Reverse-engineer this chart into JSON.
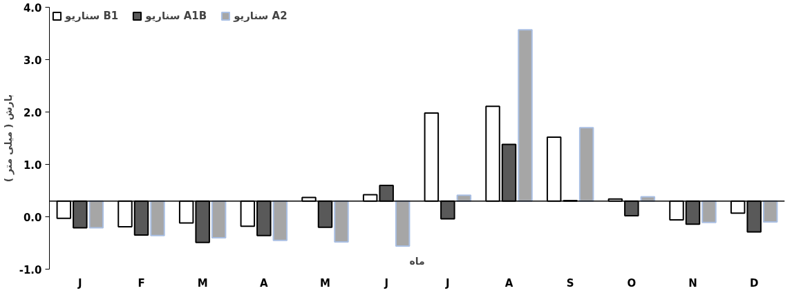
{
  "chart_data": {
    "type": "bar",
    "xlabel": "ماه",
    "ylabel": "بارش ( میلی متر )",
    "categories": [
      "J",
      "F",
      "M",
      "A",
      "M",
      "J",
      "J",
      "A",
      "S",
      "O",
      "N",
      "D"
    ],
    "series": [
      {
        "name": "سناریو B1",
        "color": "#ffffff",
        "values": [
          -0.33,
          -0.49,
          -0.42,
          -0.48,
          0.07,
          0.12,
          1.68,
          1.81,
          1.22,
          0.04,
          -0.36,
          -0.23
        ],
        "base": [
          0.3,
          0.3,
          0.3,
          0.3,
          0.3,
          0.3,
          0.3,
          0.3,
          0.3,
          0.3,
          0.3,
          0.3
        ]
      },
      {
        "name": "سناریو A1B",
        "color": "#595959",
        "values": [
          -0.51,
          -0.65,
          -0.79,
          -0.66,
          -0.5,
          0.3,
          -0.34,
          1.08,
          0.01,
          -0.28,
          -0.44,
          -0.59
        ],
        "base": [
          0.3,
          0.3,
          0.3,
          0.3,
          0.3,
          0.3,
          0.3,
          0.3,
          0.3,
          0.3,
          0.3,
          0.3
        ]
      },
      {
        "name": "سناریو A2",
        "color": "#a6a6a6",
        "values": [
          -0.51,
          -0.66,
          -0.7,
          -0.75,
          -0.78,
          -0.86,
          0.11,
          3.27,
          1.4,
          0.08,
          -0.41,
          -0.4
        ],
        "base": [
          0.3,
          0.3,
          0.3,
          0.3,
          0.3,
          0.3,
          0.3,
          0.3,
          0.3,
          0.3,
          0.3,
          0.3
        ]
      }
    ],
    "ylim": [
      -1,
      4
    ],
    "yticks": [
      {
        "value": -1,
        "label": "-1.0"
      },
      {
        "value": 0,
        "label": "0.0"
      },
      {
        "value": 1,
        "label": "1.0"
      },
      {
        "value": 2,
        "label": "2.0"
      },
      {
        "value": 3,
        "label": "3.0"
      },
      {
        "value": 4,
        "label": "4.0"
      }
    ],
    "ref_lines": [
      {
        "axis": "y",
        "value": 0.3
      }
    ],
    "grid": false,
    "legend": "top left"
  }
}
